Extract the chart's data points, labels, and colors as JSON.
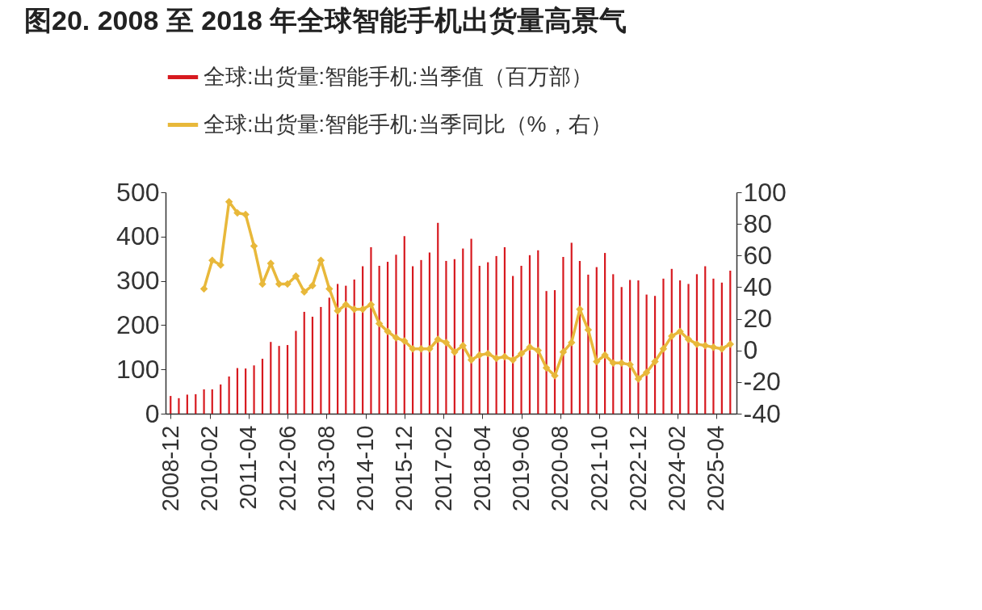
{
  "chart_data": {
    "type": "bar",
    "title": "图20. 2008 至 2018 年全球智能手机出货量高景气",
    "x": [
      "2008-12",
      "2009-03",
      "2009-06",
      "2009-09",
      "2009-12",
      "2010-03",
      "2010-06",
      "2010-09",
      "2010-12",
      "2011-03",
      "2011-06",
      "2011-09",
      "2011-12",
      "2012-03",
      "2012-06",
      "2012-09",
      "2012-12",
      "2013-03",
      "2013-06",
      "2013-09",
      "2013-12",
      "2014-03",
      "2014-06",
      "2014-09",
      "2014-12",
      "2015-03",
      "2015-06",
      "2015-09",
      "2015-12",
      "2016-03",
      "2016-06",
      "2016-09",
      "2016-12",
      "2017-03",
      "2017-06",
      "2017-09",
      "2017-12",
      "2018-03",
      "2018-06",
      "2018-09",
      "2018-12",
      "2019-03",
      "2019-06",
      "2019-09",
      "2019-12",
      "2020-03",
      "2020-06",
      "2020-09",
      "2020-12",
      "2021-03",
      "2021-06",
      "2021-09",
      "2021-12",
      "2022-03",
      "2022-06",
      "2022-09",
      "2022-12",
      "2023-03",
      "2023-06",
      "2023-09",
      "2023-12",
      "2024-03",
      "2024-06",
      "2024-09",
      "2024-12",
      "2025-03",
      "2025-06",
      "2025-09"
    ],
    "series": [
      {
        "name": "全球:出货量:智能手机:当季值（百万部）",
        "color": "#d7191f",
        "values": [
          40,
          35,
          43,
          44,
          55,
          55,
          66,
          84,
          103,
          102,
          109,
          124,
          162,
          153,
          155,
          187,
          230,
          219,
          241,
          262,
          293,
          289,
          303,
          333,
          376,
          334,
          343,
          359,
          401,
          333,
          347,
          364,
          431,
          345,
          349,
          373,
          395,
          334,
          342,
          356,
          376,
          311,
          334,
          358,
          369,
          277,
          279,
          354,
          386,
          345,
          314,
          331,
          363,
          315,
          286,
          302,
          301,
          269,
          266,
          305,
          327,
          301,
          293,
          315,
          333,
          305,
          296,
          323
        ]
      },
      {
        "name": "全球:出货量:智能手机:当季同比（%，右）",
        "color": "#e8b83a",
        "type": "line",
        "axis": "y2",
        "values": [
          null,
          null,
          null,
          null,
          39,
          57,
          54,
          94,
          87,
          86,
          66,
          42,
          55,
          42,
          42,
          47,
          37,
          41,
          57,
          39,
          25,
          29,
          26,
          26,
          29,
          17,
          12,
          8,
          6,
          1,
          1,
          1,
          7,
          5,
          -1,
          3,
          -6,
          -3,
          -2,
          -5,
          -4,
          -6,
          -2,
          2,
          0,
          -11,
          -16,
          -1,
          5,
          26,
          13,
          -7,
          -3,
          -8,
          -8,
          -9,
          -18,
          -14,
          -7,
          1,
          9,
          12,
          7,
          4,
          3,
          2,
          1,
          4
        ]
      }
    ],
    "xlim": [
      "2008-11-20",
      "2025-09-25"
    ],
    "xticks": [
      "2008-12",
      "2010-02",
      "2011-04",
      "2012-06",
      "2013-08",
      "2014-10",
      "2015-12",
      "2017-02",
      "2018-04",
      "2019-06",
      "2020-08",
      "2021-10",
      "2022-12",
      "2024-02",
      "2025-04"
    ],
    "ylim": [
      0,
      500
    ],
    "yticks": [
      0,
      100,
      200,
      300,
      400,
      500
    ],
    "y2lim": [
      -40,
      100
    ],
    "y2ticks": [
      -40,
      -20,
      0,
      20,
      40,
      60,
      80,
      100
    ],
    "marker": "diamond",
    "legend": "top",
    "grid": false
  }
}
